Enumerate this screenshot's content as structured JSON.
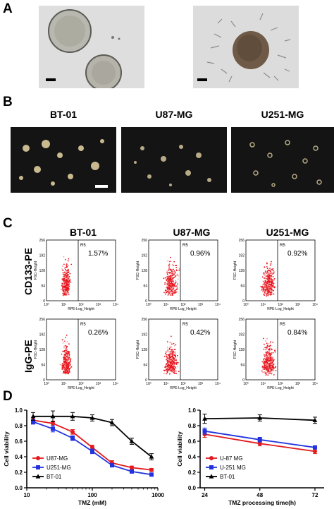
{
  "panels": {
    "A": "A",
    "B": "B",
    "C": "C",
    "D": "D"
  },
  "panel_b": {
    "titles": [
      "BT-01",
      "U87-MG",
      "U251-MG"
    ]
  },
  "panel_c": {
    "col_titles": [
      "BT-01",
      "U87-MG",
      "U251-MG"
    ],
    "row_labels": [
      "CD133-PE",
      "IgG-PE"
    ],
    "gate_label": "R5",
    "x_axis_label": "RPE-Log_Height",
    "y_axis_label": "FSC-Height",
    "y_ticks": [
      "0",
      "64",
      "128",
      "192",
      "256"
    ],
    "x_ticks": [
      "10⁰",
      "10¹",
      "10²",
      "10³",
      "10⁴"
    ],
    "percentages": [
      [
        "1.57%",
        "0.96%",
        "0.92%"
      ],
      [
        "0.26%",
        "0.42%",
        "0.84%"
      ]
    ],
    "colors": {
      "dots": "#e8141c",
      "dots_light": "#f29ba0"
    }
  },
  "chart_data": [
    {
      "type": "line",
      "xlabel": "TMZ (mM)",
      "ylabel": "Cell viability",
      "x_scale": "log",
      "xlim": [
        10,
        1000
      ],
      "ylim": [
        0,
        1.0
      ],
      "x_ticks": [
        "10",
        "100",
        "1000"
      ],
      "y_ticks": [
        "0.0",
        "0.2",
        "0.4",
        "0.6",
        "0.8",
        "1.0"
      ],
      "x": [
        12.5,
        25,
        50,
        100,
        200,
        400,
        800
      ],
      "legend_position": "bottom-left",
      "series": [
        {
          "name": "U87-MG",
          "color": "#e41a1c",
          "marker": "circle",
          "values": [
            0.87,
            0.83,
            0.72,
            0.52,
            0.32,
            0.26,
            0.23
          ],
          "err": [
            0.03,
            0.03,
            0.03,
            0.03,
            0.03,
            0.02,
            0.02
          ]
        },
        {
          "name": "U251-MG",
          "color": "#2233dd",
          "marker": "square",
          "values": [
            0.85,
            0.76,
            0.64,
            0.47,
            0.29,
            0.21,
            0.17
          ],
          "err": [
            0.03,
            0.04,
            0.03,
            0.03,
            0.02,
            0.02,
            0.02
          ]
        },
        {
          "name": "BT-01",
          "color": "#000000",
          "marker": "triangle",
          "values": [
            0.92,
            0.92,
            0.92,
            0.9,
            0.84,
            0.6,
            0.4
          ],
          "err": [
            0.05,
            0.07,
            0.05,
            0.04,
            0.04,
            0.04,
            0.04
          ]
        }
      ]
    },
    {
      "type": "line",
      "xlabel": "TMZ processing time(h)",
      "ylabel": "Cell viability",
      "xlim": [
        22,
        76
      ],
      "ylim": [
        0,
        1.0
      ],
      "x_ticks": [
        "24",
        "48",
        "72"
      ],
      "y_ticks": [
        "0.0",
        "0.2",
        "0.4",
        "0.6",
        "0.8",
        "1.0"
      ],
      "x": [
        24,
        48,
        72
      ],
      "legend_position": "bottom-left",
      "series": [
        {
          "name": "U-87 MG",
          "color": "#e41a1c",
          "marker": "circle",
          "values": [
            0.69,
            0.57,
            0.47
          ],
          "err": [
            0.04,
            0.03,
            0.03
          ]
        },
        {
          "name": "U-251 MG",
          "color": "#2233dd",
          "marker": "square",
          "values": [
            0.73,
            0.62,
            0.52
          ],
          "err": [
            0.04,
            0.03,
            0.02
          ]
        },
        {
          "name": "BT-01",
          "color": "#000000",
          "marker": "triangle",
          "values": [
            0.89,
            0.9,
            0.87
          ],
          "err": [
            0.06,
            0.04,
            0.04
          ]
        }
      ]
    }
  ]
}
